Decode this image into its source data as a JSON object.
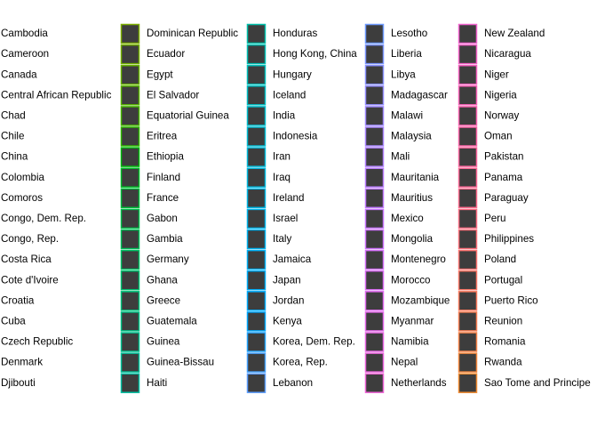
{
  "chart_data": {
    "type": "legend",
    "swatch_fill": "#3d3d3d",
    "columns": [
      {
        "items": [
          {
            "label": "Cambodia",
            "color": "#7cae00"
          },
          {
            "label": "Cameroon",
            "color": "#72b000"
          },
          {
            "label": "Canada",
            "color": "#66b200"
          },
          {
            "label": "Central African Republic",
            "color": "#58b500"
          },
          {
            "label": "Chad",
            "color": "#47b700"
          },
          {
            "label": "Chile",
            "color": "#2fba00"
          },
          {
            "label": "China",
            "color": "#00bc0b"
          },
          {
            "label": "Colombia",
            "color": "#00bd27"
          },
          {
            "label": "Comoros",
            "color": "#00be3a"
          },
          {
            "label": "Congo, Dem. Rep.",
            "color": "#00bf4a"
          },
          {
            "label": "Congo, Rep.",
            "color": "#00c058"
          },
          {
            "label": "Costa Rica",
            "color": "#00c064"
          },
          {
            "label": "Cote d'Ivoire",
            "color": "#00c170"
          },
          {
            "label": "Croatia",
            "color": "#00c17b"
          },
          {
            "label": "Cuba",
            "color": "#00c185"
          },
          {
            "label": "Czech Republic",
            "color": "#00c18f"
          },
          {
            "label": "Denmark",
            "color": "#00c199"
          },
          {
            "label": "Djibouti",
            "color": "#00c0a2"
          }
        ]
      },
      {
        "items": [
          {
            "label": "Dominican Republic",
            "color": "#00c0ab"
          },
          {
            "label": "Ecuador",
            "color": "#00bfb3"
          },
          {
            "label": "Egypt",
            "color": "#00bfbb"
          },
          {
            "label": "El Salvador",
            "color": "#00bec3"
          },
          {
            "label": "Equatorial Guinea",
            "color": "#00bdcb"
          },
          {
            "label": "Eritrea",
            "color": "#00bcd2"
          },
          {
            "label": "Ethiopia",
            "color": "#00bad9"
          },
          {
            "label": "Finland",
            "color": "#00b9df"
          },
          {
            "label": "France",
            "color": "#00b7e5"
          },
          {
            "label": "Gabon",
            "color": "#00b5eb"
          },
          {
            "label": "Gambia",
            "color": "#00b3f0"
          },
          {
            "label": "Germany",
            "color": "#00b0f5"
          },
          {
            "label": "Ghana",
            "color": "#00aef9"
          },
          {
            "label": "Greece",
            "color": "#00abfc"
          },
          {
            "label": "Guatemala",
            "color": "#00a8ff"
          },
          {
            "label": "Guinea",
            "color": "#23a5ff"
          },
          {
            "label": "Guinea-Bissau",
            "color": "#45a2ff"
          },
          {
            "label": "Haiti",
            "color": "#5c9eff"
          }
        ]
      },
      {
        "items": [
          {
            "label": "Honduras",
            "color": "#6e9aff"
          },
          {
            "label": "Hong Kong, China",
            "color": "#7d96ff"
          },
          {
            "label": "Hungary",
            "color": "#8a92ff"
          },
          {
            "label": "Iceland",
            "color": "#968eff"
          },
          {
            "label": "India",
            "color": "#a08aff"
          },
          {
            "label": "Indonesia",
            "color": "#a986ff"
          },
          {
            "label": "Iran",
            "color": "#b282ff"
          },
          {
            "label": "Iraq",
            "color": "#ba7eff"
          },
          {
            "label": "Ireland",
            "color": "#c17bff"
          },
          {
            "label": "Israel",
            "color": "#c877ff"
          },
          {
            "label": "Italy",
            "color": "#ce74fc"
          },
          {
            "label": "Jamaica",
            "color": "#d471f8"
          },
          {
            "label": "Japan",
            "color": "#da6ef3"
          },
          {
            "label": "Jordan",
            "color": "#df6bee"
          },
          {
            "label": "Kenya",
            "color": "#e368e9"
          },
          {
            "label": "Korea, Dem. Rep.",
            "color": "#e766e3"
          },
          {
            "label": "Korea, Rep.",
            "color": "#eb64dd"
          },
          {
            "label": "Lebanon",
            "color": "#ee63d6"
          }
        ]
      },
      {
        "items": [
          {
            "label": "Lesotho",
            "color": "#f162cf"
          },
          {
            "label": "Liberia",
            "color": "#f462c8"
          },
          {
            "label": "Libya",
            "color": "#f662c0"
          },
          {
            "label": "Madagascar",
            "color": "#f862b8"
          },
          {
            "label": "Malawi",
            "color": "#fa63b0"
          },
          {
            "label": "Malaysia",
            "color": "#fb64a7"
          },
          {
            "label": "Mali",
            "color": "#fc669f"
          },
          {
            "label": "Mauritania",
            "color": "#fd6896"
          },
          {
            "label": "Mauritius",
            "color": "#fd6b8d"
          },
          {
            "label": "Mexico",
            "color": "#fd6e84"
          },
          {
            "label": "Mongolia",
            "color": "#fd717b"
          },
          {
            "label": "Montenegro",
            "color": "#fc7471"
          },
          {
            "label": "Morocco",
            "color": "#fb7868"
          },
          {
            "label": "Mozambique",
            "color": "#fa7b5e"
          },
          {
            "label": "Myanmar",
            "color": "#f87f54"
          },
          {
            "label": "Namibia",
            "color": "#f68349"
          },
          {
            "label": "Nepal",
            "color": "#f3873d"
          },
          {
            "label": "Netherlands",
            "color": "#f08b30"
          }
        ]
      },
      {
        "items": [
          {
            "label": "New Zealand",
            "color": "#ed8f20"
          },
          {
            "label": "Nicaragua",
            "color": "#ea9300"
          },
          {
            "label": "Niger",
            "color": "#e69600"
          },
          {
            "label": "Nigeria",
            "color": "#e29a00"
          },
          {
            "label": "Norway",
            "color": "#dd9d00"
          },
          {
            "label": "Oman",
            "color": "#d8a100"
          },
          {
            "label": "Pakistan",
            "color": "#d3a400"
          },
          {
            "label": "Panama",
            "color": "#cda700"
          },
          {
            "label": "Paraguay",
            "color": "#c7aa00"
          },
          {
            "label": "Peru",
            "color": "#c1ad00"
          },
          {
            "label": "Philippines",
            "color": "#bab000"
          },
          {
            "label": "Poland",
            "color": "#b3b300"
          },
          {
            "label": "Portugal",
            "color": "#abb500"
          },
          {
            "label": "Puerto Rico",
            "color": "#a3b800"
          },
          {
            "label": "Reunion",
            "color": "#9aba00"
          },
          {
            "label": "Romania",
            "color": "#91bc00"
          },
          {
            "label": "Rwanda",
            "color": "#87be00"
          },
          {
            "label": "Sao Tome and Principe",
            "color": "#7cc000"
          }
        ]
      }
    ]
  }
}
